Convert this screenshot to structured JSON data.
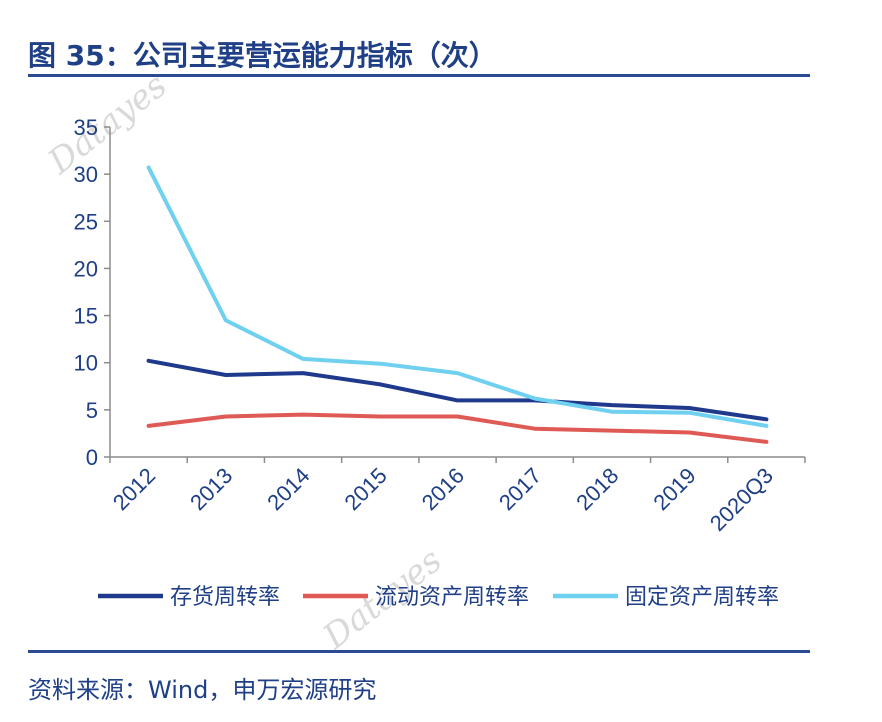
{
  "header": {
    "title": "图 35：公司主要营运能力指标（次）"
  },
  "footer": {
    "source": "资料来源：Wind，申万宏源研究"
  },
  "watermark": {
    "text": "Datayes"
  },
  "chart_data": {
    "type": "line",
    "categories": [
      "2012",
      "2013",
      "2014",
      "2015",
      "2016",
      "2017",
      "2018",
      "2019",
      "2020Q3"
    ],
    "ylim": [
      0,
      35
    ],
    "yticks": [
      0,
      5,
      10,
      15,
      20,
      25,
      30,
      35
    ],
    "grid": false,
    "legend_position": "bottom",
    "series": [
      {
        "name": "存货周转率",
        "color": "#1f3a8c",
        "values": [
          10.2,
          8.7,
          8.9,
          7.7,
          6.0,
          6.0,
          5.5,
          5.2,
          4.0
        ]
      },
      {
        "name": "流动资产周转率",
        "color": "#e05a55",
        "values": [
          3.3,
          4.3,
          4.5,
          4.3,
          4.3,
          3.0,
          2.8,
          2.6,
          1.6
        ]
      },
      {
        "name": "固定资产周转率",
        "color": "#6fd0f0",
        "values": [
          30.7,
          14.5,
          10.4,
          9.9,
          8.9,
          6.2,
          4.8,
          4.7,
          3.3
        ]
      }
    ]
  }
}
